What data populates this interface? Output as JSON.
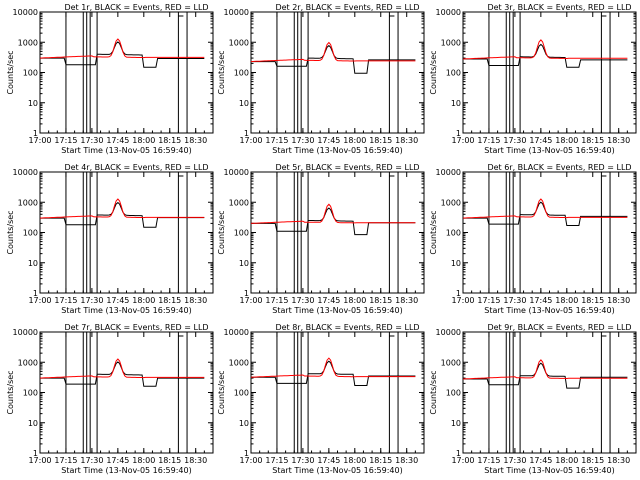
{
  "chart_data": [
    {
      "type": "line",
      "title": "Det 1r, BLACK = Events, RED = LLD",
      "xlabel": "Start Time (13-Nov-05 16:59:40)",
      "ylabel": "Counts/sec",
      "x_ticks": [
        "17:00",
        "17:15",
        "17:30",
        "17:45",
        "18:00",
        "18:15",
        "18:30"
      ],
      "y_ticks": [
        "1",
        "10",
        "100",
        "1000",
        "10000"
      ],
      "y_scale": "log",
      "ylim": [
        1,
        10000
      ],
      "series": [
        {
          "color": "#000000",
          "start_level": 300,
          "segment_levels": [
            180,
            400,
            150,
            290
          ]
        },
        {
          "color": "#ff0000",
          "start_level": 300
        }
      ]
    },
    {
      "type": "line",
      "title": "Det 2r, BLACK = Events, RED = LLD",
      "xlabel": "Start Time (13-Nov-05 16:59:40)",
      "ylabel": "Counts/sec",
      "x_ticks": [
        "17:00",
        "17:15",
        "17:30",
        "17:45",
        "18:00",
        "18:15",
        "18:30"
      ],
      "y_ticks": [
        "1",
        "10",
        "100",
        "1000",
        "10000"
      ],
      "y_scale": "log",
      "ylim": [
        1,
        10000
      ],
      "series": [
        {
          "color": "#000000",
          "start_level": 230,
          "segment_levels": [
            160,
            300,
            95,
            260
          ]
        },
        {
          "color": "#ff0000",
          "start_level": 230
        }
      ]
    },
    {
      "type": "line",
      "title": "Det 3r, BLACK = Events, RED = LLD",
      "xlabel": "Start Time (13-Nov-05 16:59:40)",
      "ylabel": "Counts/sec",
      "x_ticks": [
        "17:00",
        "17:15",
        "17:30",
        "17:45",
        "18:00",
        "18:15",
        "18:30"
      ],
      "y_ticks": [
        "1",
        "10",
        "100",
        "1000",
        "10000"
      ],
      "y_scale": "log",
      "ylim": [
        1,
        10000
      ],
      "series": [
        {
          "color": "#000000",
          "start_level": 280,
          "segment_levels": [
            170,
            330,
            150,
            260
          ]
        },
        {
          "color": "#ff0000",
          "start_level": 280
        }
      ]
    },
    {
      "type": "line",
      "title": "Det 4r, BLACK = Events, RED = LLD",
      "xlabel": "Start Time (13-Nov-05 16:59:40)",
      "ylabel": "Counts/sec",
      "x_ticks": [
        "17:00",
        "17:15",
        "17:30",
        "17:45",
        "18:00",
        "18:15",
        "18:30"
      ],
      "y_ticks": [
        "1",
        "10",
        "100",
        "1000",
        "10000"
      ],
      "y_scale": "log",
      "ylim": [
        1,
        10000
      ],
      "series": [
        {
          "color": "#000000",
          "start_level": 300,
          "segment_levels": [
            180,
            380,
            150,
            310
          ]
        },
        {
          "color": "#ff0000",
          "start_level": 300
        }
      ]
    },
    {
      "type": "line",
      "title": "Det 5r, BLACK = Events, RED = LLD",
      "xlabel": "Start Time (13-Nov-05 16:59:40)",
      "ylabel": "Counts/sec",
      "x_ticks": [
        "17:00",
        "17:15",
        "17:30",
        "17:45",
        "18:00",
        "18:15",
        "18:30"
      ],
      "y_ticks": [
        "1",
        "10",
        "100",
        "1000",
        "10000"
      ],
      "y_scale": "log",
      "ylim": [
        1,
        10000
      ],
      "series": [
        {
          "color": "#000000",
          "start_level": 200,
          "segment_levels": [
            110,
            250,
            85,
            210
          ]
        },
        {
          "color": "#ff0000",
          "start_level": 200
        }
      ]
    },
    {
      "type": "line",
      "title": "Det 6r, BLACK = Events, RED = LLD",
      "xlabel": "Start Time (13-Nov-05 16:59:40)",
      "ylabel": "Counts/sec",
      "x_ticks": [
        "17:00",
        "17:15",
        "17:30",
        "17:45",
        "18:00",
        "18:15",
        "18:30"
      ],
      "y_ticks": [
        "1",
        "10",
        "100",
        "1000",
        "10000"
      ],
      "y_scale": "log",
      "ylim": [
        1,
        10000
      ],
      "series": [
        {
          "color": "#000000",
          "start_level": 300,
          "segment_levels": [
            190,
            390,
            170,
            340
          ]
        },
        {
          "color": "#ff0000",
          "start_level": 300
        }
      ]
    },
    {
      "type": "line",
      "title": "Det 7r, BLACK = Events, RED = LLD",
      "xlabel": "Start Time (13-Nov-05 16:59:40)",
      "ylabel": "Counts/sec",
      "x_ticks": [
        "17:00",
        "17:15",
        "17:30",
        "17:45",
        "18:00",
        "18:15",
        "18:30"
      ],
      "y_ticks": [
        "1",
        "10",
        "100",
        "1000",
        "10000"
      ],
      "y_scale": "log",
      "ylim": [
        1,
        10000
      ],
      "series": [
        {
          "color": "#000000",
          "start_level": 300,
          "segment_levels": [
            190,
            400,
            160,
            300
          ]
        },
        {
          "color": "#ff0000",
          "start_level": 300
        }
      ]
    },
    {
      "type": "line",
      "title": "Det 8r, BLACK = Events, RED = LLD",
      "xlabel": "Start Time (13-Nov-05 16:59:40)",
      "ylabel": "Counts/sec",
      "x_ticks": [
        "17:00",
        "17:15",
        "17:30",
        "17:45",
        "18:00",
        "18:15",
        "18:30"
      ],
      "y_ticks": [
        "1",
        "10",
        "100",
        "1000",
        "10000"
      ],
      "y_scale": "log",
      "ylim": [
        1,
        10000
      ],
      "series": [
        {
          "color": "#000000",
          "start_level": 320,
          "segment_levels": [
            200,
            420,
            170,
            350
          ]
        },
        {
          "color": "#ff0000",
          "start_level": 320
        }
      ]
    },
    {
      "type": "line",
      "title": "Det 9r, BLACK = Events, RED = LLD",
      "xlabel": "Start Time (13-Nov-05 16:59:40)",
      "ylabel": "Counts/sec",
      "x_ticks": [
        "17:00",
        "17:15",
        "17:30",
        "17:45",
        "18:00",
        "18:15",
        "18:30"
      ],
      "y_ticks": [
        "1",
        "10",
        "100",
        "1000",
        "10000"
      ],
      "y_scale": "log",
      "ylim": [
        1,
        10000
      ],
      "series": [
        {
          "color": "#000000",
          "start_level": 280,
          "segment_levels": [
            180,
            360,
            140,
            320
          ]
        },
        {
          "color": "#ff0000",
          "start_level": 280
        }
      ]
    }
  ]
}
